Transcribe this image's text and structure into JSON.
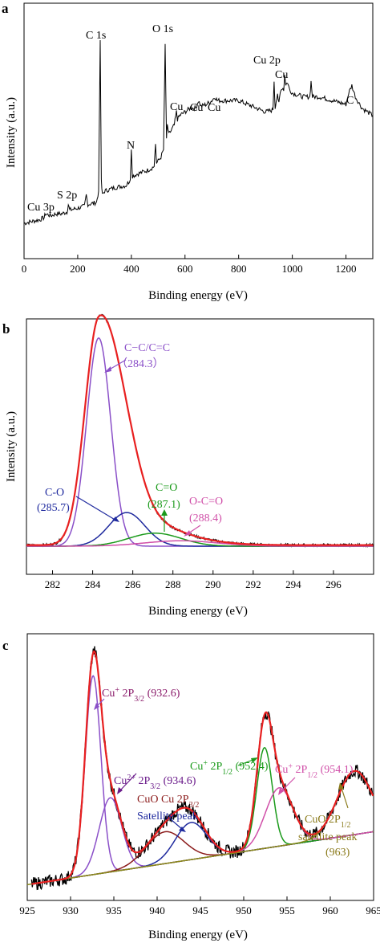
{
  "chart_data": [
    {
      "type": "line",
      "panel_label": "a",
      "xlabel": "Binding energy (eV)",
      "ylabel": "Intensity (a.u.)",
      "xlim": [
        0,
        1300
      ],
      "xticks": [
        "0",
        "200",
        "400",
        "600",
        "800",
        "1000",
        "1200"
      ],
      "series": [
        {
          "color": "#000000",
          "x": [
            0,
            30,
            60,
            75,
            80,
            100,
            120,
            140,
            160,
            165,
            170,
            200,
            225,
            232,
            238,
            270,
            278,
            284,
            288,
            292,
            300,
            340,
            380,
            396,
            400,
            404,
            420,
            460,
            485,
            490,
            494,
            500,
            510,
            520,
            526,
            531,
            534,
            540,
            560,
            568,
            572,
            580,
            600,
            620,
            640,
            650,
            660,
            680,
            700,
            712,
            720,
            760,
            800,
            850,
            900,
            928,
            932,
            936,
            940,
            945,
            950,
            955,
            962,
            968,
            972,
            976,
            980,
            990,
            1000,
            1040,
            1065,
            1070,
            1075,
            1100,
            1150,
            1200,
            1210,
            1222,
            1235,
            1260,
            1300
          ],
          "y": [
            3,
            4,
            5,
            6,
            8,
            7,
            8,
            8,
            9,
            13,
            10,
            11,
            12,
            18,
            13,
            14,
            20,
            100,
            25,
            18,
            20,
            22,
            23,
            26,
            42,
            28,
            29,
            31,
            33,
            45,
            35,
            36,
            38,
            42,
            98,
            48,
            55,
            50,
            55,
            62,
            58,
            60,
            62,
            64,
            64,
            68,
            65,
            66,
            68,
            70,
            68,
            68,
            68,
            65,
            62,
            63,
            78,
            64,
            68,
            72,
            66,
            72,
            75,
            74,
            82,
            76,
            78,
            74,
            72,
            70,
            70,
            78,
            70,
            70,
            68,
            66,
            72,
            76,
            70,
            64,
            60
          ]
        }
      ],
      "annotations": [
        {
          "text": "C 1s",
          "x": 284,
          "y": 100
        },
        {
          "text": "O 1s",
          "x": 531,
          "y": 98
        },
        {
          "text": "N",
          "x": 400,
          "y": 42
        },
        {
          "text": "Cu 3p",
          "x": 75,
          "y": 8
        },
        {
          "text": "S 2p",
          "x": 165,
          "y": 13
        },
        {
          "text": "Cu",
          "x": 570,
          "y": 62
        },
        {
          "text": "Cu",
          "x": 650,
          "y": 68
        },
        {
          "text": "Cu",
          "x": 712,
          "y": 70
        },
        {
          "text": "Cu 2p",
          "x": 932,
          "y": 78
        },
        {
          "text": "Cu",
          "x": 972,
          "y": 82
        },
        {
          "text": "C",
          "x": 1222,
          "y": 76
        }
      ]
    },
    {
      "type": "line",
      "panel_label": "b",
      "xlabel": "Binding energy (eV)",
      "ylabel": "Intensity (a.u.)",
      "xlim": [
        280.7,
        298
      ],
      "xticks": [
        "282",
        "284",
        "286",
        "288",
        "290",
        "292",
        "294",
        "296"
      ],
      "series": [
        {
          "color": "#000000",
          "peaks": [
            [
              284.3,
              100,
              0.7,
              0.15
            ],
            [
              285.7,
              15.5,
              0.9,
              0
            ],
            [
              287.1,
              6.0,
              1.3,
              0
            ],
            [
              288.4,
              2.5,
              1.8,
              0
            ]
          ],
          "baseline": 0.5,
          "noise": true
        },
        {
          "color": "#e82020",
          "peaks": [
            [
              284.3,
              100,
              0.7,
              0.15
            ],
            [
              285.7,
              15.5,
              0.9,
              0
            ],
            [
              287.1,
              6.0,
              1.3,
              0
            ],
            [
              288.4,
              2.5,
              1.8,
              0
            ]
          ],
          "baseline": 0.5
        },
        {
          "color": "#8a4fc8",
          "peaks": [
            [
              284.3,
              96,
              0.6,
              0
            ]
          ],
          "baseline": 0
        },
        {
          "color": "#1f2a9e",
          "peaks": [
            [
              285.7,
              15.5,
              0.9,
              0
            ]
          ],
          "baseline": 0
        },
        {
          "color": "#1a9a1a",
          "peaks": [
            [
              287.1,
              6.0,
              1.3,
              0
            ]
          ],
          "baseline": 0
        },
        {
          "color": "#d04fa8",
          "peaks": [
            [
              288.4,
              2.5,
              1.8,
              0
            ]
          ],
          "baseline": 0
        }
      ],
      "annotations": [
        {
          "text": "C−C/C=C",
          "x": 284.4,
          "y": 96,
          "color": "#8a4fc8"
        },
        {
          "text": "（284.3）",
          "x": 284.4,
          "y": 96,
          "color": "#8a4fc8"
        },
        {
          "text": "C-O",
          "x": 285.7,
          "y": 15.5,
          "color": "#1f2a9e"
        },
        {
          "text": "(285.7)",
          "x": 285.7,
          "y": 15.5,
          "color": "#1f2a9e"
        },
        {
          "text": "C=O",
          "x": 287.1,
          "y": 6,
          "color": "#1a9a1a"
        },
        {
          "text": "(287.1)",
          "x": 287.1,
          "y": 6,
          "color": "#1a9a1a"
        },
        {
          "text": "O-C=O",
          "x": 288.4,
          "y": 2.5,
          "color": "#d04fa8"
        },
        {
          "text": "(288.4)",
          "x": 288.4,
          "y": 2.5,
          "color": "#d04fa8"
        }
      ]
    },
    {
      "type": "line",
      "panel_label": "c",
      "xlabel": "Binding energy (eV)",
      "ylabel": "",
      "xlim": [
        925,
        965
      ],
      "xticks": [
        "925",
        "930",
        "935",
        "940",
        "945",
        "950",
        "955",
        "960",
        "965"
      ],
      "series": [
        {
          "color": "#000000",
          "peaks": [
            [
              932.6,
              75,
              0.9,
              0
            ],
            [
              934.6,
              28,
              1.3,
              0
            ],
            [
              940.9,
              12,
              2.2,
              0
            ],
            [
              943.9,
              14,
              1.8,
              0
            ],
            [
              952.4,
              38,
              0.9,
              0
            ],
            [
              954.1,
              22,
              1.6,
              0
            ],
            [
              962.8,
              24,
              2.0,
              0
            ]
          ],
          "baseline_linear": [
            925,
            2,
            965,
            22
          ],
          "noise": true
        },
        {
          "color": "#e82020",
          "peaks": [
            [
              932.6,
              75,
              0.9,
              0
            ],
            [
              934.6,
              28,
              1.3,
              0
            ],
            [
              940.9,
              12,
              2.2,
              0
            ],
            [
              943.9,
              14,
              1.8,
              0
            ],
            [
              952.4,
              38,
              0.9,
              0
            ],
            [
              954.1,
              22,
              1.6,
              0
            ],
            [
              962.8,
              24,
              2.0,
              0
            ]
          ],
          "baseline_linear": [
            925,
            2,
            965,
            22
          ]
        },
        {
          "color": "#8a4fc8",
          "peaks": [
            [
              932.6,
              75,
              0.9,
              0
            ]
          ],
          "baseline_linear": [
            925,
            2,
            965,
            22
          ]
        },
        {
          "color": "#8a4fc8",
          "peaks": [
            [
              934.6,
              28,
              1.3,
              0
            ]
          ],
          "baseline_linear": [
            925,
            2,
            965,
            22
          ]
        },
        {
          "color": "#8b1a1a",
          "peaks": [
            [
              940.9,
              12,
              2.2,
              0
            ]
          ],
          "baseline_linear": [
            925,
            2,
            965,
            22
          ]
        },
        {
          "color": "#1f2a9e",
          "peaks": [
            [
              943.9,
              14,
              1.8,
              0
            ]
          ],
          "baseline_linear": [
            925,
            2,
            965,
            22
          ]
        },
        {
          "color": "#1a9a1a",
          "peaks": [
            [
              952.4,
              38,
              0.9,
              0
            ]
          ],
          "baseline_linear": [
            925,
            2,
            965,
            22
          ]
        },
        {
          "color": "#d04fa8",
          "peaks": [
            [
              954.1,
              22,
              1.6,
              0
            ]
          ],
          "baseline_linear": [
            925,
            2,
            965,
            22
          ]
        },
        {
          "color": "#8a8a1a",
          "peaks": [
            [
              962.8,
              24,
              2.0,
              0
            ]
          ],
          "baseline_linear": [
            925,
            2,
            965,
            22
          ]
        }
      ],
      "annotations": [
        {
          "text": "Cu⁺ 2P₃/₂ (932.6)",
          "color": "#8a1a6a"
        },
        {
          "text": "Cu²⁺ 2P₃/₂ (934.6)",
          "color": "#6a1a8a"
        },
        {
          "text": "CuO Cu 2P₃/₂",
          "color": "#8b1a1a"
        },
        {
          "text": "Satellite peak",
          "color": "#1f2a9e"
        },
        {
          "text": "Cu⁺ 2P₁/₂ (952.4)",
          "color": "#1a9a1a"
        },
        {
          "text": "Cu⁺ 2P₁/₂ (954.1)",
          "color": "#d04fa8"
        },
        {
          "text": "CuO 2P₁/₂",
          "color": "#8a7a1a"
        },
        {
          "text": "satellite peak",
          "color": "#8a7a1a"
        },
        {
          "text": "(963)",
          "color": "#8a7a1a"
        }
      ]
    }
  ]
}
